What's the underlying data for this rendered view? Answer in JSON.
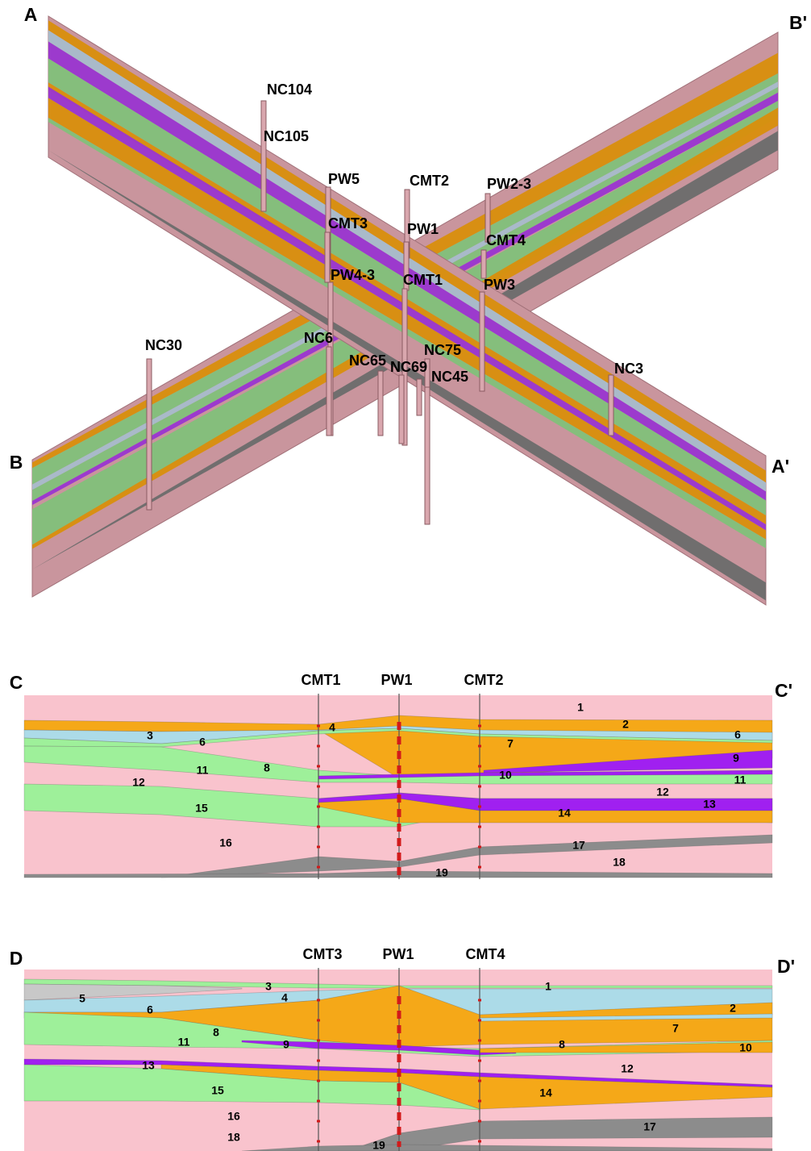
{
  "cross_section_3d": {
    "end_labels": [
      "A",
      "B'",
      "B",
      "A'"
    ],
    "wells": [
      "NC104",
      "NC105",
      "PW5",
      "CMT2",
      "PW2-3",
      "CMT3",
      "PW1",
      "CMT4",
      "PW4-3",
      "CMT1",
      "PW3",
      "NC30",
      "NC6",
      "NC75",
      "NC65",
      "NC69",
      "NC45",
      "NC3"
    ]
  },
  "section_c": {
    "end_labels": [
      "C",
      "C'"
    ],
    "wells": [
      "CMT1",
      "PW1",
      "CMT2"
    ],
    "layer_labels": [
      "1",
      "2",
      "3",
      "4",
      "6",
      "7",
      "6",
      "9",
      "8",
      "11",
      "10",
      "11",
      "12",
      "12",
      "13",
      "14",
      "15",
      "16",
      "17",
      "18",
      "19"
    ]
  },
  "section_d": {
    "end_labels": [
      "D",
      "D'"
    ],
    "wells": [
      "CMT3",
      "PW1",
      "CMT4"
    ],
    "layer_labels": [
      "1",
      "3",
      "4",
      "5",
      "6",
      "2",
      "7",
      "8",
      "11",
      "9",
      "8",
      "10",
      "12",
      "13",
      "15",
      "14",
      "16",
      "17",
      "18",
      "19"
    ]
  }
}
